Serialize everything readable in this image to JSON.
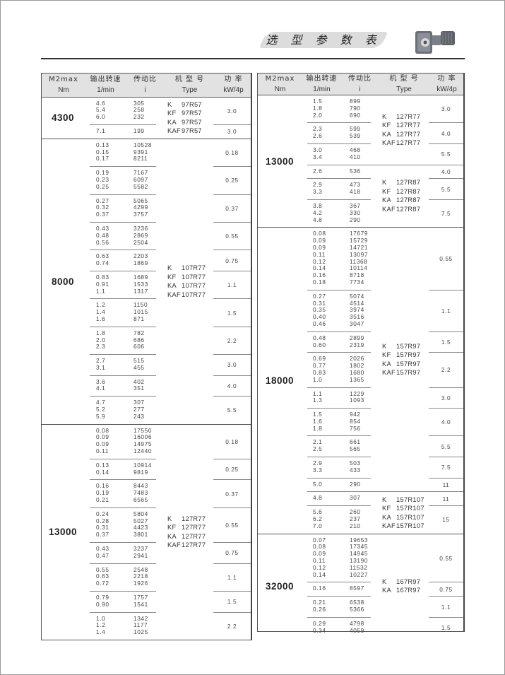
{
  "page": {
    "title": "选 型 参 数 表",
    "header_image": "gear-motor-picture"
  },
  "table_header": {
    "torque": [
      "M2max",
      "Nm"
    ],
    "speed": [
      "输出转速",
      "1/min"
    ],
    "ratio": [
      "传动比",
      "i"
    ],
    "type": [
      "机 型 号",
      "Type"
    ],
    "power": [
      "功 率",
      "kW/4p"
    ]
  },
  "tables": [
    {
      "blocks": [
        {
          "torque": "4300",
          "groups": [
            {
              "types": [
                {
                  "pre": "K",
                  "model": "97R57"
                },
                {
                  "pre": "KF",
                  "model": "97R57"
                },
                {
                  "pre": "KA",
                  "model": "97R57"
                },
                {
                  "pre": "KAF",
                  "model": "97R57"
                }
              ],
              "subs": [
                {
                  "speeds": [
                    "4.6",
                    "5.4",
                    "6.0"
                  ],
                  "ratios": [
                    "305",
                    "258",
                    "232"
                  ],
                  "power": "3.0"
                },
                {
                  "speeds": [
                    "7.1"
                  ],
                  "ratios": [
                    "199"
                  ],
                  "power": "3.0"
                }
              ]
            }
          ]
        },
        {
          "torque": "8000",
          "groups": [
            {
              "types": [
                {
                  "pre": "K",
                  "model": "107R77"
                },
                {
                  "pre": "KF",
                  "model": "107R77"
                },
                {
                  "pre": "KA",
                  "model": "107R77"
                },
                {
                  "pre": "KAF",
                  "model": "107R77"
                }
              ],
              "subs": [
                {
                  "speeds": [
                    "0.13",
                    "0.15",
                    "0.17"
                  ],
                  "ratios": [
                    "10528",
                    "9391",
                    "8211"
                  ],
                  "power": "0.18"
                },
                {
                  "speeds": [
                    "0.19",
                    "0.23",
                    "0.25"
                  ],
                  "ratios": [
                    "7167",
                    "6097",
                    "5582"
                  ],
                  "power": "0.25"
                },
                {
                  "speeds": [
                    "0.27",
                    "0.32",
                    "0.37"
                  ],
                  "ratios": [
                    "5065",
                    "4299",
                    "3757"
                  ],
                  "power": "0.37"
                },
                {
                  "speeds": [
                    "0.43",
                    "0.48",
                    "0.56"
                  ],
                  "ratios": [
                    "3236",
                    "2869",
                    "2504"
                  ],
                  "power": "0.55"
                },
                {
                  "speeds": [
                    "0.63",
                    "0.74"
                  ],
                  "ratios": [
                    "2203",
                    "1869"
                  ],
                  "power": "0.75"
                },
                {
                  "speeds": [
                    "0.83",
                    "0.91",
                    "1.1"
                  ],
                  "ratios": [
                    "1689",
                    "1533",
                    "1317"
                  ],
                  "power": "1.1"
                },
                {
                  "speeds": [
                    "1.2",
                    "1.4",
                    "1.6"
                  ],
                  "ratios": [
                    "1150",
                    "1015",
                    "871"
                  ],
                  "power": "1.5"
                },
                {
                  "speeds": [
                    "1.8",
                    "2.0",
                    "2.3"
                  ],
                  "ratios": [
                    "782",
                    "686",
                    "606"
                  ],
                  "power": "2.2"
                },
                {
                  "speeds": [
                    "2.7",
                    "3.1"
                  ],
                  "ratios": [
                    "515",
                    "455"
                  ],
                  "power": "3.0"
                },
                {
                  "speeds": [
                    "3.6",
                    "4.1"
                  ],
                  "ratios": [
                    "402",
                    "351"
                  ],
                  "power": "4.0"
                },
                {
                  "speeds": [
                    "4.7",
                    "5.2",
                    "5.9"
                  ],
                  "ratios": [
                    "307",
                    "277",
                    "243"
                  ],
                  "power": "5.5"
                }
              ]
            }
          ]
        },
        {
          "torque": "13000",
          "groups": [
            {
              "types": [
                {
                  "pre": "K",
                  "model": "127R77"
                },
                {
                  "pre": "KF",
                  "model": "127R77"
                },
                {
                  "pre": "KA",
                  "model": "127R77"
                },
                {
                  "pre": "KAF",
                  "model": "127R77"
                }
              ],
              "subs": [
                {
                  "speeds": [
                    "0.08",
                    "0.09",
                    "0.09",
                    "0.11"
                  ],
                  "ratios": [
                    "17550",
                    "16006",
                    "14975",
                    "12440"
                  ],
                  "power": "0.18"
                },
                {
                  "speeds": [
                    "0.13",
                    "0.14"
                  ],
                  "ratios": [
                    "10914",
                    "9819"
                  ],
                  "power": "0.25"
                },
                {
                  "speeds": [
                    "0.16",
                    "0.19",
                    "0.21"
                  ],
                  "ratios": [
                    "8443",
                    "7483",
                    "6565"
                  ],
                  "power": "0.37"
                },
                {
                  "speeds": [
                    "0.24",
                    "0.28",
                    "0.31",
                    "0.37"
                  ],
                  "ratios": [
                    "5804",
                    "5027",
                    "4423",
                    "3801"
                  ],
                  "power": "0.55"
                },
                {
                  "speeds": [
                    "0.43",
                    "0.47"
                  ],
                  "ratios": [
                    "3237",
                    "2941"
                  ],
                  "power": "0.75"
                },
                {
                  "speeds": [
                    "0.55",
                    "0.63",
                    "0.72"
                  ],
                  "ratios": [
                    "2548",
                    "2218",
                    "1926"
                  ],
                  "power": "1.1"
                },
                {
                  "speeds": [
                    "0.79",
                    "0.90"
                  ],
                  "ratios": [
                    "1757",
                    "1541"
                  ],
                  "power": "1.5"
                },
                {
                  "speeds": [
                    "1.0",
                    "1.2",
                    "1.4"
                  ],
                  "ratios": [
                    "1342",
                    "1177",
                    "1025"
                  ],
                  "power": "2.2"
                }
              ]
            }
          ]
        }
      ]
    },
    {
      "blocks": [
        {
          "torque": "13000",
          "groups": [
            {
              "types": [
                {
                  "pre": "K",
                  "model": "127R77"
                },
                {
                  "pre": "KF",
                  "model": "127R77"
                },
                {
                  "pre": "KA",
                  "model": "127R77"
                },
                {
                  "pre": "KAF",
                  "model": "127R77"
                }
              ],
              "subs": [
                {
                  "speeds": [
                    "1.5",
                    "1.8",
                    "2.0"
                  ],
                  "ratios": [
                    "899",
                    "790",
                    "690"
                  ],
                  "power": "3.0"
                },
                {
                  "speeds": [
                    "2.3",
                    "2.6"
                  ],
                  "ratios": [
                    "599",
                    "539"
                  ],
                  "power": "4.0"
                },
                {
                  "speeds": [
                    "3.0",
                    "3.4"
                  ],
                  "ratios": [
                    "468",
                    "410"
                  ],
                  "power": "5.5"
                }
              ]
            },
            {
              "types": [
                {
                  "pre": "K",
                  "model": "127R87"
                },
                {
                  "pre": "KF",
                  "model": "127R87"
                },
                {
                  "pre": "KA",
                  "model": "127R87"
                },
                {
                  "pre": "KAF",
                  "model": "127R87"
                }
              ],
              "subs": [
                {
                  "speeds": [
                    "2.6"
                  ],
                  "ratios": [
                    "536"
                  ],
                  "power": "4.0"
                },
                {
                  "speeds": [
                    "2.9",
                    "3.3"
                  ],
                  "ratios": [
                    "473",
                    "418"
                  ],
                  "power": "5.5"
                },
                {
                  "speeds": [
                    "3.8",
                    "4.2",
                    "4.8"
                  ],
                  "ratios": [
                    "367",
                    "330",
                    "290"
                  ],
                  "power": "7.5"
                }
              ]
            }
          ]
        },
        {
          "torque": "18000",
          "groups": [
            {
              "types": [
                {
                  "pre": "K",
                  "model": "157R97"
                },
                {
                  "pre": "KF",
                  "model": "157R97"
                },
                {
                  "pre": "KA",
                  "model": "157R97"
                },
                {
                  "pre": "KAF",
                  "model": "157R97"
                }
              ],
              "subs": [
                {
                  "speeds": [
                    "0.08",
                    "0.09",
                    "0.09",
                    "0.11",
                    "0.12",
                    "0.14",
                    "0.16",
                    "0.18"
                  ],
                  "ratios": [
                    "17679",
                    "15729",
                    "14721",
                    "13097",
                    "11368",
                    "10114",
                    "8718",
                    "7734"
                  ],
                  "power": "0.55"
                },
                {
                  "speeds": [
                    "0.27",
                    "0.31",
                    "0.35",
                    "0.40",
                    "0.46"
                  ],
                  "ratios": [
                    "5074",
                    "4514",
                    "3974",
                    "3516",
                    "3047"
                  ],
                  "power": "1.1"
                },
                {
                  "speeds": [
                    "0.48",
                    "0.60"
                  ],
                  "ratios": [
                    "2899",
                    "2319"
                  ],
                  "power": "1.5"
                },
                {
                  "speeds": [
                    "0.69",
                    "0.77",
                    "0.83",
                    "1.0"
                  ],
                  "ratios": [
                    "2026",
                    "1802",
                    "1680",
                    "1365"
                  ],
                  "power": "2.2"
                },
                {
                  "speeds": [
                    "1.1",
                    "1.3"
                  ],
                  "ratios": [
                    "1229",
                    "1093"
                  ],
                  "power": "3.0"
                },
                {
                  "speeds": [
                    "1.5",
                    "1.6",
                    "1.8"
                  ],
                  "ratios": [
                    "942",
                    "854",
                    "756"
                  ],
                  "power": "4.0"
                },
                {
                  "speeds": [
                    "2.1",
                    "2.5"
                  ],
                  "ratios": [
                    "661",
                    "565"
                  ],
                  "power": "5.5"
                },
                {
                  "speeds": [
                    "2.9",
                    "3.3"
                  ],
                  "ratios": [
                    "503",
                    "433"
                  ],
                  "power": "7.5"
                },
                {
                  "speeds": [
                    "5.0"
                  ],
                  "ratios": [
                    "290"
                  ],
                  "power": "11"
                }
              ]
            },
            {
              "types": [
                {
                  "pre": "K",
                  "model": "157R107"
                },
                {
                  "pre": "KF",
                  "model": "157R107"
                },
                {
                  "pre": "KA",
                  "model": "157R107"
                },
                {
                  "pre": "KAF",
                  "model": "157R107"
                }
              ],
              "subs": [
                {
                  "speeds": [
                    "4.8"
                  ],
                  "ratios": [
                    "307"
                  ],
                  "power": "11"
                },
                {
                  "speeds": [
                    "5.6",
                    "6.2",
                    "7.0"
                  ],
                  "ratios": [
                    "260",
                    "237",
                    "210"
                  ],
                  "power": "15"
                }
              ]
            }
          ]
        },
        {
          "torque": "32000",
          "groups": [
            {
              "types": [
                {
                  "pre": "K",
                  "model": "167R97"
                },
                {
                  "pre": "KA",
                  "model": "167R97"
                }
              ],
              "subs": [
                {
                  "speeds": [
                    "0.07",
                    "0.08",
                    "0.09",
                    "0.11",
                    "0.12",
                    "0.14"
                  ],
                  "ratios": [
                    "19653",
                    "17345",
                    "14945",
                    "13190",
                    "11532",
                    "10227"
                  ],
                  "power": "0.55"
                },
                {
                  "speeds": [
                    "0.16"
                  ],
                  "ratios": [
                    "8597"
                  ],
                  "power": "0.75"
                },
                {
                  "speeds": [
                    "0.21",
                    "0.26"
                  ],
                  "ratios": [
                    "6538",
                    "5366"
                  ],
                  "power": "1.1"
                },
                {
                  "speeds": [
                    "0.29",
                    "0.34"
                  ],
                  "ratios": [
                    "4798",
                    "4059"
                  ],
                  "power": "1.5"
                }
              ]
            }
          ]
        }
      ]
    }
  ]
}
